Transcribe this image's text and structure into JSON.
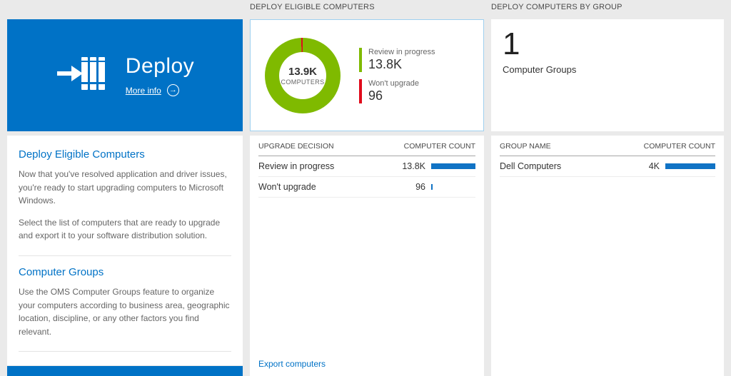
{
  "colors": {
    "accent_blue": "#0072c6",
    "bar_blue": "#1073c5",
    "green": "#7fba00",
    "red": "#e00b1c"
  },
  "left_panel": {
    "tile": {
      "title": "Deploy",
      "more_info_label": "More info"
    },
    "sections": [
      {
        "heading": "Deploy Eligible Computers",
        "paragraphs": [
          "Now that you've resolved application and driver issues, you're ready to start upgrading computers to Microsoft Windows.",
          "Select the list of computers that are ready to upgrade and export it to your software distribution solution."
        ]
      },
      {
        "heading": "Computer Groups",
        "paragraphs": [
          "Use the OMS Computer Groups feature to organize your computers according to business area, geographic location, discipline, or any other factors you find relevant."
        ]
      }
    ]
  },
  "eligible_panel": {
    "header": "DEPLOY ELIGIBLE COMPUTERS",
    "donut": {
      "center_value": "13.9K",
      "center_label": "COMPUTERS",
      "legend": [
        {
          "label": "Review in progress",
          "value": "13.8K",
          "color": "#7fba00"
        },
        {
          "label": "Won't upgrade",
          "value": "96",
          "color": "#e00b1c"
        }
      ]
    },
    "table": {
      "columns": [
        "UPGRADE DECISION",
        "COMPUTER COUNT"
      ],
      "rows": [
        {
          "label": "Review in progress",
          "value": "13.8K",
          "bar_pct": 100
        },
        {
          "label": "Won't upgrade",
          "value": "96",
          "bar_pct": 3
        }
      ]
    },
    "footer_link": "Export computers"
  },
  "groups_panel": {
    "header": "DEPLOY COMPUTERS BY GROUP",
    "summary": {
      "value": "1",
      "label": "Computer Groups"
    },
    "table": {
      "columns": [
        "GROUP NAME",
        "COMPUTER COUNT"
      ],
      "rows": [
        {
          "label": "Dell Computers",
          "value": "4K",
          "bar_pct": 100
        }
      ]
    }
  },
  "chart_data": {
    "type": "pie",
    "title": "Deploy Eligible Computers",
    "categories": [
      "Review in progress",
      "Won't upgrade"
    ],
    "values": [
      13800,
      96
    ],
    "value_labels": [
      "13.8K",
      "96"
    ],
    "colors": [
      "#7fba00",
      "#e00b1c"
    ],
    "center_total": "13.9K",
    "center_label": "COMPUTERS",
    "legend_position": "right"
  }
}
